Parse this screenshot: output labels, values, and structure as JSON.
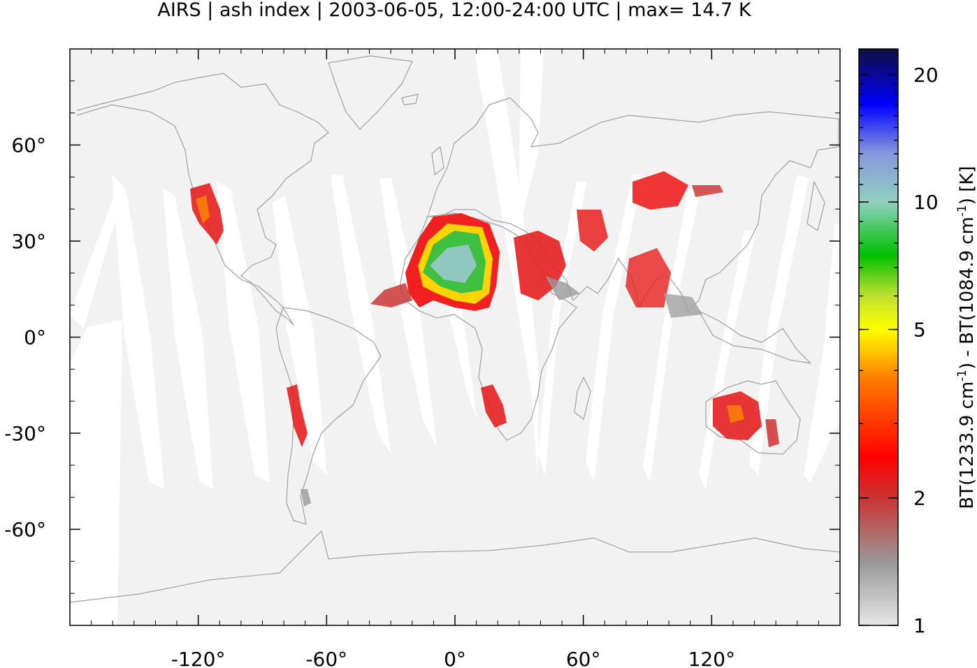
{
  "title": "AIRS | ash index | 2003-06-05, 12:00-24:00 UTC | max= 14.7 K",
  "colorbar": {
    "label_parts": [
      "BT(1233.9 cm",
      "-1",
      ") - BT(1084.9 cm",
      "-1",
      ") [K]"
    ],
    "scale": "log",
    "range": [
      1,
      23
    ],
    "ticks": [
      {
        "value": 1,
        "label": "1"
      },
      {
        "value": 2,
        "label": "2"
      },
      {
        "value": 5,
        "label": "5"
      },
      {
        "value": 10,
        "label": "10"
      },
      {
        "value": 20,
        "label": "20"
      }
    ],
    "stops": [
      {
        "value": 1,
        "color": "#e6e6e6"
      },
      {
        "value": 1.4,
        "color": "#9a9a9a"
      },
      {
        "value": 2,
        "color": "#cc3333"
      },
      {
        "value": 2.5,
        "color": "#ff0000"
      },
      {
        "value": 3.8,
        "color": "#ff7a00"
      },
      {
        "value": 5,
        "color": "#ffff00"
      },
      {
        "value": 6,
        "color": "#c0e030"
      },
      {
        "value": 7.5,
        "color": "#00c000"
      },
      {
        "value": 10,
        "color": "#90d0c0"
      },
      {
        "value": 13,
        "color": "#8899dd"
      },
      {
        "value": 17,
        "color": "#0000ff"
      },
      {
        "value": 23,
        "color": "#101040"
      }
    ]
  },
  "axes": {
    "x": {
      "range": [
        -180,
        180
      ],
      "ticks": [
        {
          "value": -120,
          "label": "-120°"
        },
        {
          "value": -60,
          "label": "-60°"
        },
        {
          "value": 0,
          "label": "0°"
        },
        {
          "value": 60,
          "label": "60°"
        },
        {
          "value": 120,
          "label": "120°"
        }
      ]
    },
    "y": {
      "range": [
        -90,
        90
      ],
      "ticks": [
        {
          "value": 60,
          "label": "60°"
        },
        {
          "value": 30,
          "label": "30°"
        },
        {
          "value": 0,
          "label": "0°"
        },
        {
          "value": -30,
          "label": "-30°"
        },
        {
          "value": -60,
          "label": "-60°"
        }
      ]
    }
  },
  "colors": {
    "background": "#f2f2f2",
    "gap": "#ffffff",
    "coast": "#a0a0a0"
  }
}
